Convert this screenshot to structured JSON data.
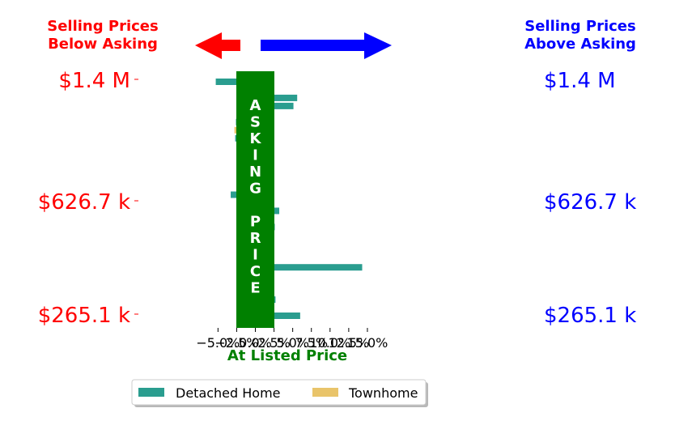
{
  "header": {
    "left_title_line1": "Selling Prices",
    "left_title_line2": "Below Asking",
    "right_title_line1": "Selling Prices",
    "right_title_line2": "Above Asking"
  },
  "price_labels": {
    "top": "$1.4 M",
    "middle": "$626.7 k",
    "bottom": "$265.1 k"
  },
  "asking_price_letters": [
    "A",
    "S",
    "K",
    "I",
    "N",
    "G",
    "",
    "P",
    "R",
    "I",
    "C",
    "E"
  ],
  "legend": {
    "detached_label": "Detached Home",
    "townhome_label": "Townhome"
  },
  "colors": {
    "detached": "#2a9d8f",
    "townhome": "#e9c46a",
    "asking_band": "#008000",
    "below": "#ff0000",
    "above": "#0000ff"
  },
  "chart_data": {
    "type": "bar",
    "orientation": "horizontal",
    "xlabel": "At Listed Price",
    "xticks": [
      "−5.0%",
      "−2.5%",
      "0.0%",
      "2.5%",
      "5.0%",
      "7.5%",
      "10.0%",
      "12.5%",
      "15.0%"
    ],
    "xlim": [
      -5.6,
      16.5
    ],
    "series": [
      {
        "name": "Detached Home",
        "values": [
          -5.3,
          -2.1,
          5.6,
          5.1,
          1.0,
          -2.6,
          -2.7,
          1.3,
          1.2,
          1.2,
          1.2,
          1.4,
          1.2,
          -3.3,
          -1.5,
          3.2,
          2.6,
          1.2,
          1.2,
          2.2,
          2.0,
          14.3,
          1.2,
          1.2,
          1.2,
          2.7,
          1.4,
          6.0
        ]
      },
      {
        "name": "Townhome",
        "values": [
          -2.8,
          -1.6
        ]
      }
    ],
    "townhome_positions": [
      6,
      17
    ],
    "bar_order": "top-to-bottom"
  }
}
